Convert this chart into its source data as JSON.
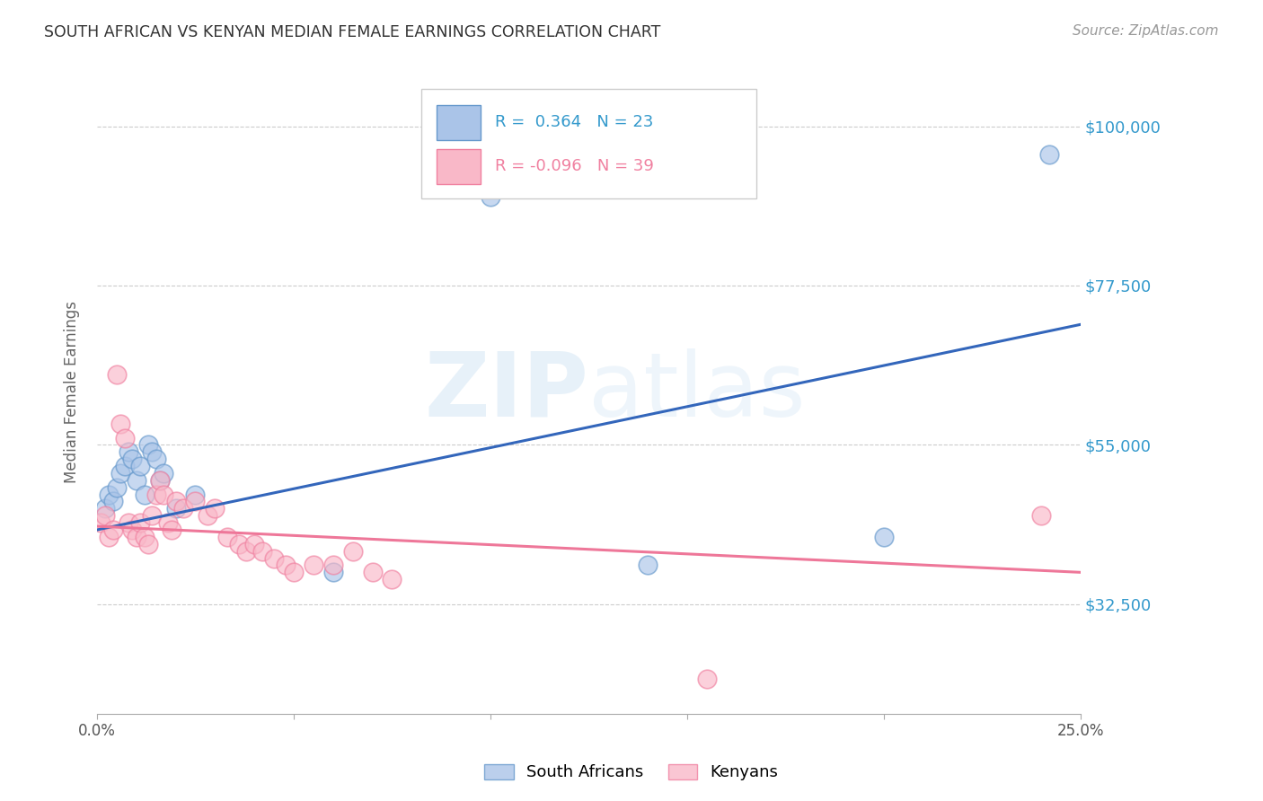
{
  "title": "SOUTH AFRICAN VS KENYAN MEDIAN FEMALE EARNINGS CORRELATION CHART",
  "source": "Source: ZipAtlas.com",
  "ylabel": "Median Female Earnings",
  "watermark": "ZIPatlas",
  "ytick_labels": [
    "$100,000",
    "$77,500",
    "$55,000",
    "$32,500"
  ],
  "ytick_values": [
    100000,
    77500,
    55000,
    32500
  ],
  "ylim": [
    17000,
    108000
  ],
  "xlim": [
    0.0,
    0.25
  ],
  "sa_R": 0.364,
  "sa_N": 23,
  "ke_R": -0.096,
  "ke_N": 39,
  "sa_color": "#aac4e8",
  "ke_color": "#f9b8c8",
  "sa_edge_color": "#6699cc",
  "ke_edge_color": "#f080a0",
  "sa_line_color": "#3366bb",
  "ke_line_color": "#ee7799",
  "title_color": "#333333",
  "right_label_color": "#3399cc",
  "grid_color": "#cccccc",
  "background_color": "#ffffff",
  "legend_text_color": "#3399cc",
  "sa_x": [
    0.002,
    0.003,
    0.004,
    0.005,
    0.006,
    0.007,
    0.008,
    0.009,
    0.01,
    0.011,
    0.012,
    0.013,
    0.014,
    0.015,
    0.016,
    0.017,
    0.02,
    0.025,
    0.06,
    0.1,
    0.14,
    0.2,
    0.242
  ],
  "sa_y": [
    46000,
    48000,
    47000,
    49000,
    51000,
    52000,
    54000,
    53000,
    50000,
    52000,
    48000,
    55000,
    54000,
    53000,
    50000,
    51000,
    46000,
    48000,
    37000,
    90000,
    38000,
    42000,
    96000
  ],
  "ke_x": [
    0.001,
    0.002,
    0.003,
    0.004,
    0.005,
    0.006,
    0.007,
    0.008,
    0.009,
    0.01,
    0.011,
    0.012,
    0.013,
    0.014,
    0.015,
    0.016,
    0.017,
    0.018,
    0.019,
    0.02,
    0.022,
    0.025,
    0.028,
    0.03,
    0.033,
    0.036,
    0.038,
    0.04,
    0.042,
    0.045,
    0.048,
    0.05,
    0.055,
    0.06,
    0.065,
    0.07,
    0.075,
    0.155,
    0.24
  ],
  "ke_y": [
    44000,
    45000,
    42000,
    43000,
    65000,
    58000,
    56000,
    44000,
    43000,
    42000,
    44000,
    42000,
    41000,
    45000,
    48000,
    50000,
    48000,
    44000,
    43000,
    47000,
    46000,
    47000,
    45000,
    46000,
    42000,
    41000,
    40000,
    41000,
    40000,
    39000,
    38000,
    37000,
    38000,
    38000,
    40000,
    37000,
    36000,
    22000,
    45000
  ]
}
